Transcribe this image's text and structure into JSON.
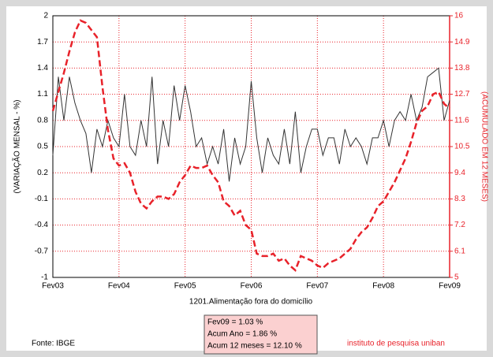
{
  "chart_data": {
    "type": "line",
    "xlabel": "1201.Alimentação fora do domicílio",
    "ylabel": "(VARIAÇÃO MENSAL - %)",
    "y2label": "(ACUMULADO EM 12 MESES)",
    "categories": [
      "Fev03",
      null,
      null,
      null,
      null,
      null,
      null,
      null,
      null,
      null,
      null,
      null,
      "Fev04",
      null,
      null,
      null,
      null,
      null,
      null,
      null,
      null,
      null,
      null,
      null,
      "Fev05",
      null,
      null,
      null,
      null,
      null,
      null,
      null,
      null,
      null,
      null,
      null,
      "Fev06",
      null,
      null,
      null,
      null,
      null,
      null,
      null,
      null,
      null,
      null,
      null,
      "Fev07",
      null,
      null,
      null,
      null,
      null,
      null,
      null,
      null,
      null,
      null,
      null,
      "Fev08",
      null,
      null,
      null,
      null,
      null,
      null,
      null,
      null,
      null,
      null,
      null,
      "Fev09"
    ],
    "ylim": [
      -1,
      2
    ],
    "yticks": [
      -1,
      -0.7,
      -0.4,
      -0.1,
      0.2,
      0.5,
      0.8,
      1.1,
      1.4,
      1.7,
      2
    ],
    "y2lim": [
      5,
      16
    ],
    "y2ticks": [
      5,
      6.1,
      7.2,
      8.3,
      9.4,
      10.5,
      11.6,
      12.7,
      13.8,
      14.9,
      16
    ],
    "grid": true,
    "series": [
      {
        "name": "Variação mensal",
        "color": "#333333",
        "values": [
          0.4,
          1.3,
          0.8,
          1.3,
          1.0,
          0.8,
          0.65,
          0.2,
          0.7,
          0.5,
          0.8,
          0.6,
          0.5,
          1.1,
          0.5,
          0.4,
          0.8,
          0.5,
          1.3,
          0.3,
          0.8,
          0.5,
          1.2,
          0.8,
          1.2,
          0.9,
          0.5,
          0.6,
          0.3,
          0.5,
          0.3,
          0.7,
          0.1,
          0.6,
          0.3,
          0.5,
          1.25,
          0.6,
          0.2,
          0.6,
          0.4,
          0.3,
          0.7,
          0.3,
          0.9,
          0.2,
          0.5,
          0.7,
          0.7,
          0.4,
          0.6,
          0.6,
          0.3,
          0.7,
          0.5,
          0.6,
          0.5,
          0.3,
          0.6,
          0.6,
          0.8,
          0.5,
          0.8,
          0.9,
          0.8,
          1.1,
          0.8,
          0.95,
          1.3,
          1.35,
          1.4,
          0.8,
          1.03
        ]
      },
      {
        "name": "Acumulado 12 meses",
        "color": "#e8222a",
        "axis": "y2",
        "values": [
          12.0,
          12.8,
          13.6,
          14.5,
          15.3,
          15.8,
          15.7,
          15.4,
          15.1,
          13.0,
          11.2,
          10.0,
          9.7,
          9.8,
          9.4,
          8.6,
          8.1,
          7.9,
          8.2,
          8.4,
          8.4,
          8.3,
          8.5,
          9.0,
          9.3,
          9.7,
          9.6,
          9.6,
          9.7,
          9.3,
          9.0,
          8.2,
          8.0,
          7.6,
          7.8,
          7.2,
          7.0,
          6.0,
          5.9,
          5.9,
          6.0,
          5.7,
          5.8,
          5.5,
          5.3,
          5.9,
          5.8,
          5.7,
          5.5,
          5.4,
          5.6,
          5.7,
          5.8,
          6.0,
          6.2,
          6.6,
          6.9,
          7.1,
          7.5,
          8.0,
          8.2,
          8.6,
          9.0,
          9.5,
          10.0,
          10.7,
          11.5,
          12.0,
          12.2,
          12.7,
          12.8,
          12.3,
          12.1
        ]
      }
    ],
    "annotations": [
      "Fev09 = 1.03 %",
      "Acum Ano = 1.86 %",
      "Acum 12 meses = 12.10 %"
    ],
    "source": "Fonte: IBGE",
    "credit": "instituto de pesquisa uniban"
  }
}
